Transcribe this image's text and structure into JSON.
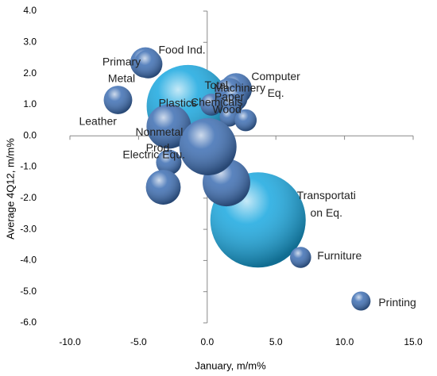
{
  "chart_data": {
    "type": "bubble",
    "xlabel": "January, m/m%",
    "ylabel": "Average 4Q12, m/m%",
    "xlim": [
      -10,
      15
    ],
    "ylim": [
      -6,
      4
    ],
    "xticks": [
      {
        "value": -10,
        "label": "-10.0"
      },
      {
        "value": -5,
        "label": "-5.0"
      },
      {
        "value": 0,
        "label": "0.0"
      },
      {
        "value": 5,
        "label": "5.0"
      },
      {
        "value": 10,
        "label": "10.0"
      },
      {
        "value": 15,
        "label": "15.0"
      }
    ],
    "yticks": [
      {
        "value": 4,
        "label": "4.0"
      },
      {
        "value": 3,
        "label": "3.0"
      },
      {
        "value": 2,
        "label": "2.0"
      },
      {
        "value": 1,
        "label": "1.0"
      },
      {
        "value": 0,
        "label": "0.0"
      },
      {
        "value": -1,
        "label": "-1.0"
      },
      {
        "value": -2,
        "label": "-2.0"
      },
      {
        "value": -3,
        "label": "-3.0"
      },
      {
        "value": -4,
        "label": "-4.0"
      },
      {
        "value": -5,
        "label": "-5.0"
      },
      {
        "value": -6,
        "label": "-6.0"
      }
    ],
    "points": [
      {
        "label": [
          "Transportati",
          "on Eq."
        ],
        "x": 3.7,
        "y": -2.7,
        "size": 225,
        "color": "#1aa8e0"
      },
      {
        "label": [
          "Plastics"
        ],
        "x": -1.4,
        "y": 0.95,
        "size": 169,
        "color": "#1aa8e0"
      },
      {
        "label": [
          "Primary",
          "Metal"
        ],
        "x": -4.5,
        "y": 2.35,
        "size": 23,
        "color": "#3d6eb3"
      },
      {
        "label": [
          "Food Ind."
        ],
        "x": -4.3,
        "y": 2.3,
        "size": 20,
        "color": "#3d6eb3"
      },
      {
        "label": [
          "Leather"
        ],
        "x": -6.5,
        "y": 1.15,
        "size": 20,
        "color": "#3d6eb3"
      },
      {
        "label": [
          "Chemicals"
        ],
        "x": 0.3,
        "y": 1.0,
        "size": 12,
        "color": "#3d6eb3"
      },
      {
        "label": [
          "Computer",
          "Eq."
        ],
        "x": 2.1,
        "y": 1.5,
        "size": 25,
        "color": "#3d6eb3"
      },
      {
        "label": [
          "Total"
        ],
        "x": 1.6,
        "y": 1.4,
        "size": 20,
        "color": "#3d6eb3"
      },
      {
        "label": [
          "Machinery"
        ],
        "x": 2.0,
        "y": 1.2,
        "size": 16,
        "color": "#3d6eb3"
      },
      {
        "label": [
          "Paper"
        ],
        "x": 1.8,
        "y": 1.0,
        "size": 12,
        "color": "#3d6eb3"
      },
      {
        "label": [
          "Wood"
        ],
        "x": 1.6,
        "y": 0.6,
        "size": 9,
        "color": "#3d6eb3"
      },
      {
        "label": null,
        "x": 2.8,
        "y": 0.5,
        "size": 12,
        "color": "#3d6eb3"
      },
      {
        "label": [
          "Nonmetal",
          "Prod."
        ],
        "x": -2.8,
        "y": 0.3,
        "size": 49,
        "color": "#3d6eb3"
      },
      {
        "label": [
          "Electric Equ."
        ],
        "x": -2.8,
        "y": -0.85,
        "size": 16,
        "color": "#3d6eb3"
      },
      {
        "label": null,
        "x": -3.2,
        "y": -1.65,
        "size": 30,
        "color": "#3d6eb3"
      },
      {
        "label": null,
        "x": 1.4,
        "y": -1.5,
        "size": 56,
        "color": "#3d6eb3"
      },
      {
        "label": null,
        "x": 0.05,
        "y": -0.35,
        "size": 81,
        "color": "#3d6eb3"
      },
      {
        "label": [
          "Furniture"
        ],
        "x": 6.8,
        "y": -3.9,
        "size": 11,
        "color": "#3d6eb3"
      },
      {
        "label": [
          "Printing"
        ],
        "x": 11.2,
        "y": -5.3,
        "size": 9,
        "color": "#3d6eb3"
      }
    ]
  }
}
